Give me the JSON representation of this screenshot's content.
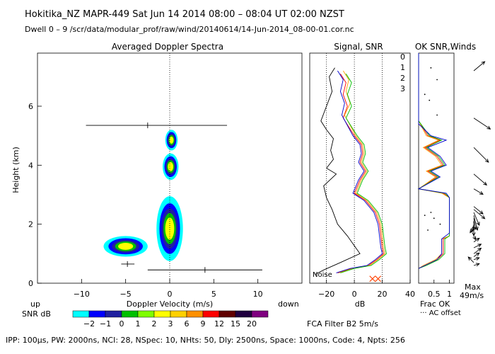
{
  "header": {
    "line1": "Hokitika_NZ   MAPR-449   Sat Jun 14 2014 08:00 – 08:04 UT 02:00 NZST",
    "line2": "Dwell   0  –   9    /scr/data/modular_prof/raw/wind/20140614/14-Jun-2014_08-00-01.cor.nc"
  },
  "panel_titles": {
    "spectra": "Averaged Doppler Spectra",
    "signal": "Signal, SNR",
    "ok": "OK  SNR,Winds"
  },
  "colorbar": {
    "label_up": "up",
    "label_down": "down",
    "snr_label": "SNR dB",
    "colors": [
      "#00ffff",
      "#0000ff",
      "#2020a0",
      "#00c000",
      "#7fff00",
      "#ffff00",
      "#ffd000",
      "#ff9000",
      "#ff0000",
      "#600000",
      "#200040",
      "#800080"
    ],
    "tick_labels": [
      "−2",
      "−1",
      "0",
      "1",
      "2",
      "3",
      "6",
      "9",
      "12",
      "15",
      "20"
    ]
  },
  "legend": {
    "beam_labels": [
      "0",
      "1",
      "2",
      "3"
    ],
    "beam_colors": [
      "#ff0000",
      "#ffa000",
      "#00c000",
      "#0000cc"
    ]
  },
  "annotations": {
    "noise": "Noise",
    "fca": "FCA Filter B2   5m/s",
    "max": "Max",
    "max_value": "49m/s",
    "frac_ok": "Frac OK",
    "ac_offset": "··· AC offset"
  },
  "footer": "IPP: 100μs,   PW: 2000ns,   NCI:  28,   NSpec: 10,  NHts: 50,   Dly: 2500ns,   Space: 1000ns,   Code: 4,   Npts: 256",
  "chart_data": [
    {
      "type": "heatmap",
      "title": "Averaged Doppler Spectra",
      "xlabel": "Doppler Velocity (m/s)",
      "ylabel": "Height (km)",
      "xlim": [
        -15,
        15
      ],
      "ylim": [
        0,
        7.8
      ],
      "xticks": [
        -10,
        -5,
        0,
        5,
        10
      ],
      "xtick_labels": [
        "−10",
        "−5",
        "0",
        "5",
        "10"
      ],
      "yticks": [
        0,
        2,
        4,
        6
      ],
      "ytick_labels": [
        "0",
        "2",
        "4",
        "6"
      ],
      "blobs": [
        {
          "name": "ground-clutter",
          "x": -5,
          "y": 1.25,
          "rx": 2.5,
          "ry": 0.35
        },
        {
          "name": "lower-echo",
          "x": 0,
          "y": 1.85,
          "rx": 1.5,
          "ry": 1.1
        },
        {
          "name": "echo-4km",
          "x": 0.1,
          "y": 3.95,
          "rx": 0.9,
          "ry": 0.45
        },
        {
          "name": "echo-5km",
          "x": 0.2,
          "y": 4.85,
          "rx": 0.7,
          "ry": 0.35
        }
      ],
      "errorbars": [
        {
          "x": -2.5,
          "y": 5.35,
          "x1": -9.5,
          "x2": 6.5
        },
        {
          "x": 4,
          "y": 0.45,
          "x1": -2.5,
          "x2": 10.5
        },
        {
          "x": -4.8,
          "y": 0.65,
          "x1": -5.5,
          "x2": -4.0
        }
      ]
    },
    {
      "type": "line",
      "title": "Signal, SNR",
      "xlabel": "dB",
      "xlim": [
        -32,
        40
      ],
      "ylim": [
        0,
        7.8
      ],
      "xticks": [
        -20,
        0,
        20,
        40
      ],
      "xtick_labels": [
        "−20",
        "0",
        "20",
        "40"
      ],
      "series": [
        {
          "name": "noise/signal",
          "color": "#000000",
          "points": [
            [
              -14,
              7.3
            ],
            [
              -18,
              7.0
            ],
            [
              -16,
              6.5
            ],
            [
              -20,
              6.0
            ],
            [
              -24,
              5.5
            ],
            [
              -20,
              5.2
            ],
            [
              -15,
              4.9
            ],
            [
              -17,
              4.5
            ],
            [
              -15,
              4.2
            ],
            [
              -20,
              3.9
            ],
            [
              -13,
              3.7
            ],
            [
              -22,
              3.3
            ],
            [
              -20,
              2.9
            ],
            [
              -16,
              2.5
            ],
            [
              -12,
              2.0
            ],
            [
              -5,
              1.6
            ],
            [
              1,
              1.2
            ],
            [
              4,
              1.0
            ],
            [
              -10,
              0.7
            ],
            [
              -22,
              0.45
            ],
            [
              -28,
              0.3
            ]
          ]
        },
        {
          "name": "beam 0",
          "color": "#ff0000",
          "points": [
            [
              -10,
              7.1
            ],
            [
              -6,
              6.8
            ],
            [
              -8,
              6.4
            ],
            [
              -5,
              6.0
            ],
            [
              -8,
              5.6
            ],
            [
              0,
              5.0
            ],
            [
              5,
              4.7
            ],
            [
              6,
              4.4
            ],
            [
              4,
              4.1
            ],
            [
              8,
              3.8
            ],
            [
              4,
              3.5
            ],
            [
              0,
              3.05
            ],
            [
              8,
              2.8
            ],
            [
              15,
              2.4
            ],
            [
              18,
              2.0
            ],
            [
              19,
              1.6
            ],
            [
              20,
              1.2
            ],
            [
              21,
              1.0
            ],
            [
              16,
              0.8
            ],
            [
              10,
              0.6
            ],
            [
              -2,
              0.5
            ],
            [
              -12,
              0.35
            ]
          ]
        },
        {
          "name": "beam 1",
          "color": "#ffa000",
          "points": [
            [
              -8,
              7.2
            ],
            [
              -4,
              6.9
            ],
            [
              -6,
              6.5
            ],
            [
              -3,
              6.1
            ],
            [
              -7,
              5.7
            ],
            [
              1,
              5.0
            ],
            [
              6,
              4.7
            ],
            [
              7,
              4.4
            ],
            [
              5,
              4.1
            ],
            [
              9,
              3.8
            ],
            [
              5,
              3.5
            ],
            [
              1,
              3.05
            ],
            [
              9,
              2.8
            ],
            [
              16,
              2.4
            ],
            [
              19,
              2.0
            ],
            [
              20,
              1.6
            ],
            [
              21,
              1.2
            ],
            [
              22,
              1.0
            ],
            [
              17,
              0.8
            ],
            [
              11,
              0.6
            ],
            [
              -1,
              0.5
            ],
            [
              -11,
              0.35
            ]
          ]
        },
        {
          "name": "beam 2",
          "color": "#00c000",
          "points": [
            [
              -6,
              7.1
            ],
            [
              -2,
              6.8
            ],
            [
              -5,
              6.4
            ],
            [
              -2,
              6.0
            ],
            [
              -6,
              5.6
            ],
            [
              2,
              5.0
            ],
            [
              7,
              4.7
            ],
            [
              8,
              4.4
            ],
            [
              6,
              4.1
            ],
            [
              10,
              3.8
            ],
            [
              6,
              3.5
            ],
            [
              2,
              3.05
            ],
            [
              10,
              2.8
            ],
            [
              17,
              2.4
            ],
            [
              20,
              2.0
            ],
            [
              21,
              1.6
            ],
            [
              22,
              1.2
            ],
            [
              23,
              1.0
            ],
            [
              18,
              0.8
            ],
            [
              12,
              0.6
            ],
            [
              0,
              0.5
            ],
            [
              -10,
              0.35
            ]
          ]
        },
        {
          "name": "beam 3",
          "color": "#0000cc",
          "points": [
            [
              -12,
              7.2
            ],
            [
              -8,
              6.9
            ],
            [
              -10,
              6.5
            ],
            [
              -7,
              6.1
            ],
            [
              -9,
              5.7
            ],
            [
              -1,
              5.0
            ],
            [
              4,
              4.7
            ],
            [
              5,
              4.4
            ],
            [
              3,
              4.1
            ],
            [
              7,
              3.8
            ],
            [
              3,
              3.5
            ],
            [
              -1,
              3.05
            ],
            [
              7,
              2.8
            ],
            [
              14,
              2.4
            ],
            [
              17,
              2.0
            ],
            [
              18,
              1.6
            ],
            [
              19,
              1.2
            ],
            [
              20,
              1.0
            ],
            [
              15,
              0.8
            ],
            [
              9,
              0.6
            ],
            [
              -3,
              0.5
            ],
            [
              -13,
              0.35
            ]
          ]
        }
      ],
      "vlines": [
        -20,
        0,
        20
      ],
      "markers": [
        {
          "x": 13,
          "y": 0.15
        },
        {
          "x": 17,
          "y": 0.15
        }
      ]
    },
    {
      "type": "line",
      "title": "OK  SNR,Winds",
      "xlabel": "Frac OK",
      "xlim": [
        0,
        1.15
      ],
      "ylim": [
        0,
        7.8
      ],
      "xticks": [
        0.5,
        1
      ],
      "xtick_labels": [
        "0.5",
        "1"
      ],
      "series": [
        {
          "name": "beam 0",
          "color": "#ff0000",
          "points": [
            [
              0,
              7.8
            ],
            [
              0,
              5.5
            ],
            [
              0.3,
              5.0
            ],
            [
              0.7,
              4.85
            ],
            [
              0.2,
              4.6
            ],
            [
              0.6,
              4.3
            ],
            [
              0.8,
              4.0
            ],
            [
              0.3,
              3.8
            ],
            [
              0.6,
              3.6
            ],
            [
              0,
              3.2
            ],
            [
              0.8,
              3.05
            ],
            [
              1.0,
              2.9
            ],
            [
              1.0,
              1.6
            ],
            [
              0.8,
              1.5
            ],
            [
              0.8,
              1.0
            ],
            [
              0.6,
              0.8
            ],
            [
              0.2,
              0.6
            ],
            [
              0,
              0.5
            ]
          ]
        },
        {
          "name": "beam 1",
          "color": "#ffa000",
          "points": [
            [
              0,
              7.8
            ],
            [
              0,
              5.5
            ],
            [
              0.25,
              5.0
            ],
            [
              0.65,
              4.85
            ],
            [
              0.15,
              4.6
            ],
            [
              0.55,
              4.3
            ],
            [
              0.75,
              4.0
            ],
            [
              0.25,
              3.8
            ],
            [
              0.55,
              3.6
            ],
            [
              0,
              3.2
            ],
            [
              0.75,
              3.05
            ],
            [
              1.0,
              2.9
            ],
            [
              1.0,
              1.6
            ],
            [
              0.75,
              1.5
            ],
            [
              0.75,
              1.0
            ],
            [
              0.55,
              0.8
            ],
            [
              0.15,
              0.6
            ],
            [
              0,
              0.5
            ]
          ]
        },
        {
          "name": "beam 2",
          "color": "#00c000",
          "points": [
            [
              0,
              7.8
            ],
            [
              0,
              5.5
            ],
            [
              0.35,
              5.0
            ],
            [
              0.75,
              4.85
            ],
            [
              0.25,
              4.6
            ],
            [
              0.65,
              4.3
            ],
            [
              0.85,
              4.0
            ],
            [
              0.35,
              3.8
            ],
            [
              0.65,
              3.6
            ],
            [
              0,
              3.2
            ],
            [
              0.85,
              3.05
            ],
            [
              1.0,
              2.9
            ],
            [
              1.0,
              1.6
            ],
            [
              0.85,
              1.5
            ],
            [
              0.85,
              1.0
            ],
            [
              0.65,
              0.8
            ],
            [
              0.25,
              0.6
            ],
            [
              0,
              0.5
            ]
          ]
        },
        {
          "name": "beam 3",
          "color": "#0000cc",
          "points": [
            [
              0,
              7.8
            ],
            [
              0,
              5.4
            ],
            [
              0.4,
              5.0
            ],
            [
              0.9,
              4.85
            ],
            [
              0.3,
              4.6
            ],
            [
              0.7,
              4.3
            ],
            [
              0.9,
              4.0
            ],
            [
              0.4,
              3.8
            ],
            [
              0.7,
              3.6
            ],
            [
              0,
              3.2
            ],
            [
              0.9,
              3.05
            ],
            [
              1.0,
              2.9
            ],
            [
              1.0,
              1.7
            ],
            [
              0.75,
              1.5
            ],
            [
              0.75,
              1.0
            ],
            [
              0.6,
              0.8
            ],
            [
              0.2,
              0.6
            ],
            [
              0,
              0.5
            ]
          ]
        }
      ],
      "dots": [
        [
          0.4,
          7.3
        ],
        [
          0.6,
          6.9
        ],
        [
          0.2,
          6.4
        ],
        [
          0.35,
          6.2
        ],
        [
          0.6,
          5.7
        ],
        [
          0.4,
          2.4
        ],
        [
          0.2,
          2.3
        ],
        [
          0.5,
          2.2
        ],
        [
          0.7,
          2.0
        ],
        [
          0.3,
          1.8
        ]
      ]
    },
    {
      "type": "vector",
      "title": "Winds",
      "ylim": [
        0,
        7.8
      ],
      "max_speed": 49,
      "vectors": [
        {
          "y": 7.2,
          "u": 0.6,
          "v": 0.5
        },
        {
          "y": 5.6,
          "u": 0.9,
          "v": -0.6
        },
        {
          "y": 4.6,
          "u": 0.8,
          "v": -0.8
        },
        {
          "y": 3.7,
          "u": 0.7,
          "v": -0.6
        },
        {
          "y": 3.2,
          "u": 0.5,
          "v": -0.3
        },
        {
          "y": 2.6,
          "u": 0.5,
          "v": -0.4
        },
        {
          "y": 2.5,
          "u": 0.6,
          "v": -0.5
        },
        {
          "y": 2.4,
          "u": 0.3,
          "v": -0.7
        },
        {
          "y": 2.3,
          "u": 0.2,
          "v": -0.8
        },
        {
          "y": 2.2,
          "u": 0.1,
          "v": -0.6
        },
        {
          "y": 2.1,
          "u": 0.0,
          "v": -0.5
        },
        {
          "y": 2.0,
          "u": -0.1,
          "v": -0.4
        },
        {
          "y": 1.9,
          "u": -0.2,
          "v": -0.3
        },
        {
          "y": 1.8,
          "u": 0.0,
          "v": -0.3
        },
        {
          "y": 1.6,
          "u": 0.1,
          "v": -0.2
        },
        {
          "y": 1.4,
          "u": 0.3,
          "v": 0.2
        },
        {
          "y": 1.2,
          "u": 0.4,
          "v": 0.2
        },
        {
          "y": 1.0,
          "u": 0.4,
          "v": 0.3
        },
        {
          "y": 0.9,
          "u": 0.3,
          "v": 0.2
        },
        {
          "y": 0.8,
          "u": 0.3,
          "v": 0.1
        },
        {
          "y": 0.7,
          "u": -0.3,
          "v": 0.3
        },
        {
          "y": 0.6,
          "u": 0.3,
          "v": 0.1
        }
      ]
    }
  ]
}
